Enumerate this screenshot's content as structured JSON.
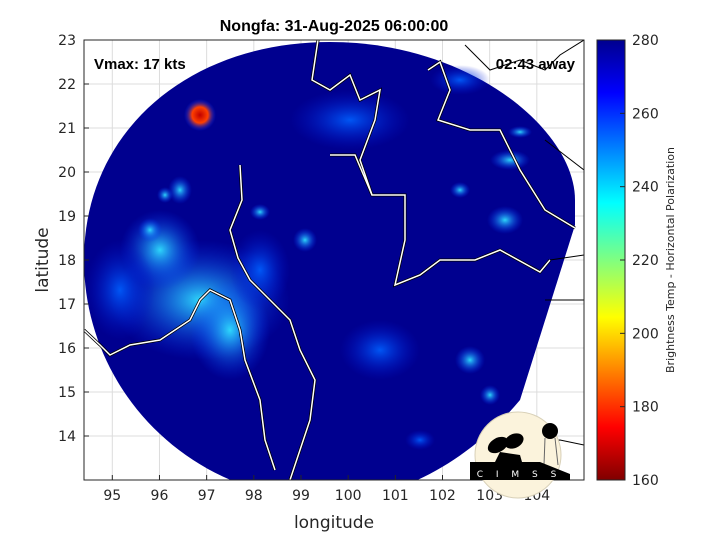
{
  "title": "Nongfa: 31-Aug-2025 06:00:00",
  "annotations": {
    "vmax": "Vmax: 17 kts",
    "time_away": "02:43 away"
  },
  "xaxis": {
    "label": "longitude",
    "ticks": [
      "95",
      "96",
      "97",
      "98",
      "99",
      "100",
      "101",
      "102",
      "103",
      "104"
    ],
    "range": [
      94.4,
      105.0
    ]
  },
  "yaxis": {
    "label": "latitude",
    "ticks": [
      "14",
      "15",
      "16",
      "17",
      "18",
      "19",
      "20",
      "21",
      "22",
      "23"
    ],
    "range": [
      13,
      23
    ]
  },
  "colorbar": {
    "label": "Brightness Temp - Horizontal Polarization",
    "ticks": [
      "160",
      "180",
      "200",
      "220",
      "240",
      "260",
      "280"
    ],
    "range": [
      160,
      280
    ],
    "colormap": "jet"
  },
  "logo": {
    "text": "CIMSS"
  },
  "colors": {
    "background_field": "#00008f",
    "coastline": "#ffffff",
    "grid": "#dcdcdc"
  }
}
